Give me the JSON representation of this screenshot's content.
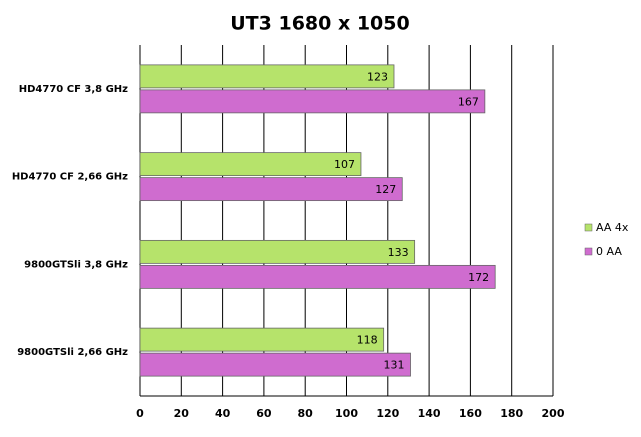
{
  "chart_data": {
    "type": "bar",
    "orientation": "horizontal",
    "title": "UT3 1680 x 1050",
    "categories": [
      "HD4770 CF 3,8 GHz",
      "HD4770 CF 2,66 GHz",
      "9800GTSli 3,8 GHz",
      "9800GTSli 2,66 GHz"
    ],
    "series": [
      {
        "name": "AA 4x",
        "color": "#b6e36b",
        "values": [
          123,
          107,
          133,
          118
        ]
      },
      {
        "name": "0 AA",
        "color": "#cf6ccf",
        "values": [
          167,
          127,
          172,
          131
        ]
      }
    ],
    "xlim": [
      0,
      200
    ],
    "xticks": [
      0,
      20,
      40,
      60,
      80,
      100,
      120,
      140,
      160,
      180,
      200
    ],
    "grid": true,
    "legend": "right"
  }
}
